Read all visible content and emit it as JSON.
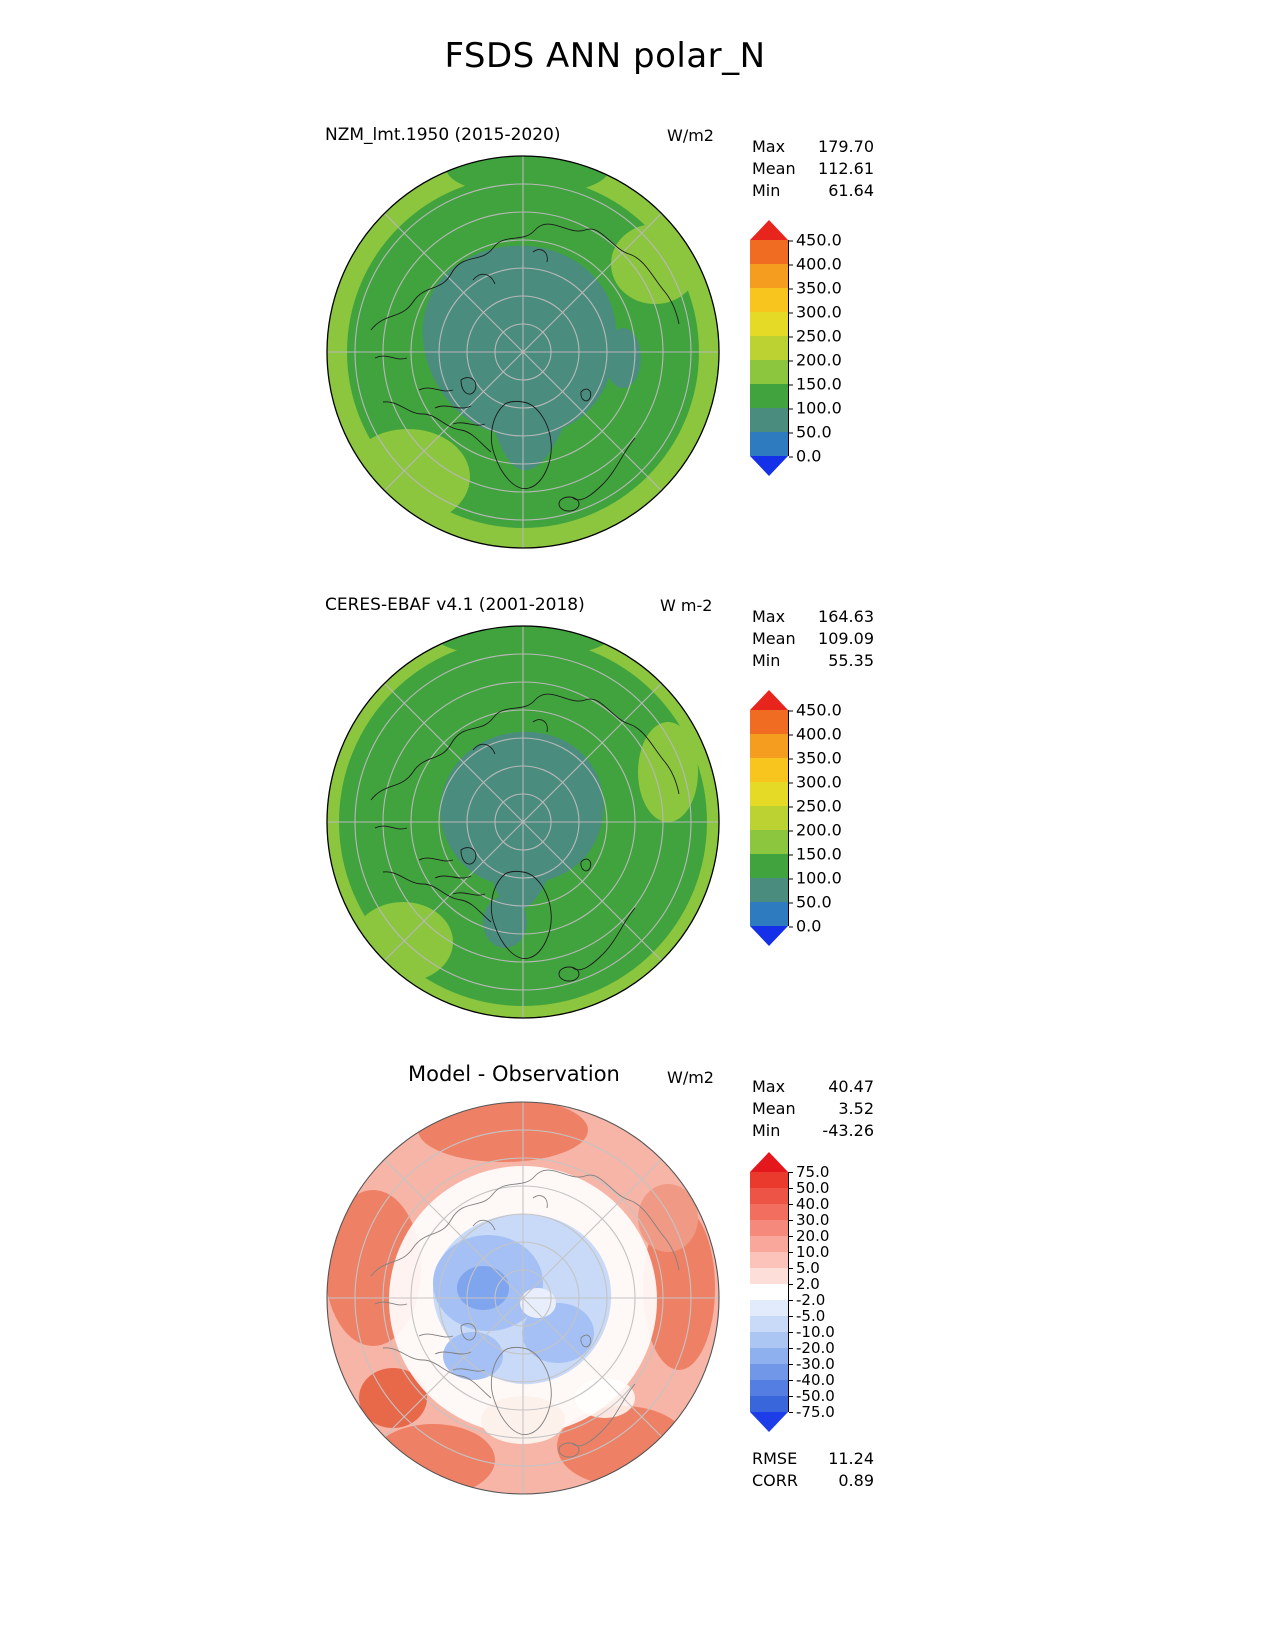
{
  "page_title": "FSDS ANN polar_N",
  "panels": [
    {
      "id": "model",
      "title": "NZM_lmt.1950 (2015-2020)",
      "units": "W/m2",
      "stats": {
        "rows": [
          {
            "label": "Max",
            "value": "179.70"
          },
          {
            "label": "Mean",
            "value": "112.61"
          },
          {
            "label": "Min",
            "value": "61.64"
          }
        ]
      },
      "colorbar": {
        "ticks": [
          "450.0",
          "400.0",
          "350.0",
          "300.0",
          "250.0",
          "200.0",
          "150.0",
          "100.0",
          "50.0",
          "0.0"
        ],
        "colors": [
          "#e8251c",
          "#ef6c22",
          "#f59d1f",
          "#f7c51e",
          "#e5db27",
          "#bcd233",
          "#8cc63f",
          "#41a33e",
          "#4a8d7f",
          "#2e7bbf",
          "#1430e8"
        ]
      }
    },
    {
      "id": "obs",
      "title": "CERES-EBAF v4.1 (2001-2018)",
      "units": "W m-2",
      "stats": {
        "rows": [
          {
            "label": "Max",
            "value": "164.63"
          },
          {
            "label": "Mean",
            "value": "109.09"
          },
          {
            "label": "Min",
            "value": "55.35"
          }
        ]
      },
      "colorbar": {
        "ticks": [
          "450.0",
          "400.0",
          "350.0",
          "300.0",
          "250.0",
          "200.0",
          "150.0",
          "100.0",
          "50.0",
          "0.0"
        ],
        "colors": [
          "#e8251c",
          "#ef6c22",
          "#f59d1f",
          "#f7c51e",
          "#e5db27",
          "#bcd233",
          "#8cc63f",
          "#41a33e",
          "#4a8d7f",
          "#2e7bbf",
          "#1430e8"
        ]
      }
    },
    {
      "id": "diff",
      "title": "Model - Observation",
      "units": "W/m2",
      "stats": {
        "rows": [
          {
            "label": "Max",
            "value": "40.47"
          },
          {
            "label": "Mean",
            "value": "3.52"
          },
          {
            "label": "Min",
            "value": "-43.26"
          }
        ]
      },
      "colorbar": {
        "ticks": [
          "75.0",
          "50.0",
          "40.0",
          "30.0",
          "20.0",
          "10.0",
          "5.0",
          "2.0",
          "-2.0",
          "-5.0",
          "-10.0",
          "-20.0",
          "-30.0",
          "-40.0",
          "-50.0",
          "-75.0"
        ],
        "colors": [
          "#e3171c",
          "#e93a2d",
          "#ee5445",
          "#f26f5f",
          "#f58a7c",
          "#f8a79a",
          "#fbc3ba",
          "#fdded8",
          "#ffffff",
          "#e2ebfb",
          "#c8daf8",
          "#abc6f3",
          "#8eb0ee",
          "#7197e8",
          "#547ee2",
          "#3a66dc",
          "#1d3de8"
        ]
      }
    }
  ],
  "footer": {
    "rows": [
      {
        "label": "RMSE",
        "value": "11.24"
      },
      {
        "label": "CORR",
        "value": "0.89"
      }
    ]
  },
  "chart_data": [
    {
      "type": "heatmap",
      "subtype": "north-polar-stereographic-map",
      "variable": "FSDS",
      "season": "ANN",
      "region": "polar_N",
      "title": "NZM_lmt.1950 (2015-2020)",
      "units": "W/m2",
      "stats": {
        "max": 179.7,
        "mean": 112.61,
        "min": 61.64
      },
      "colorbar_levels": [
        0.0,
        50.0,
        100.0,
        150.0,
        200.0,
        250.0,
        300.0,
        350.0,
        400.0,
        450.0
      ],
      "legend_position": "right"
    },
    {
      "type": "heatmap",
      "subtype": "north-polar-stereographic-map",
      "variable": "FSDS",
      "season": "ANN",
      "region": "polar_N",
      "title": "CERES-EBAF v4.1 (2001-2018)",
      "units": "W m-2",
      "stats": {
        "max": 164.63,
        "mean": 109.09,
        "min": 55.35
      },
      "colorbar_levels": [
        0.0,
        50.0,
        100.0,
        150.0,
        200.0,
        250.0,
        300.0,
        350.0,
        400.0,
        450.0
      ],
      "legend_position": "right"
    },
    {
      "type": "heatmap",
      "subtype": "north-polar-stereographic-map",
      "variable": "FSDS difference",
      "season": "ANN",
      "region": "polar_N",
      "title": "Model - Observation",
      "units": "W/m2",
      "stats": {
        "max": 40.47,
        "mean": 3.52,
        "min": -43.26,
        "rmse": 11.24,
        "corr": 0.89
      },
      "colorbar_levels": [
        -75.0,
        -50.0,
        -40.0,
        -30.0,
        -20.0,
        -10.0,
        -5.0,
        -2.0,
        2.0,
        5.0,
        10.0,
        20.0,
        30.0,
        40.0,
        50.0,
        75.0
      ],
      "legend_position": "right"
    }
  ]
}
